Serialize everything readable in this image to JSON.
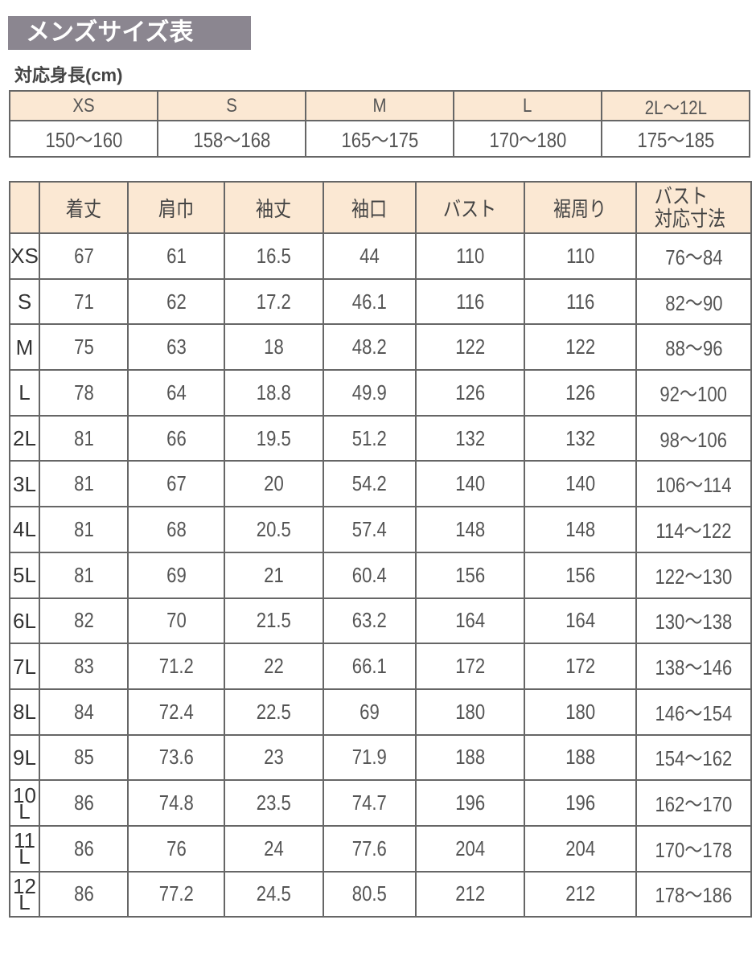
{
  "title": "メンズサイズ表",
  "height_label": "対応身長(cm)",
  "height_table": {
    "sizes": [
      "XS",
      "S",
      "M",
      "L",
      "2L〜12L"
    ],
    "ranges": [
      "150〜160",
      "158〜168",
      "165〜175",
      "170〜180",
      "175〜185"
    ]
  },
  "size_table": {
    "headers": [
      "",
      "着丈",
      "肩巾",
      "袖丈",
      "袖口",
      "バスト",
      "裾周り",
      "バスト\n対応寸法"
    ],
    "rows": [
      [
        "XS",
        "67",
        "61",
        "16.5",
        "44",
        "110",
        "110",
        "76〜84"
      ],
      [
        "S",
        "71",
        "62",
        "17.2",
        "46.1",
        "116",
        "116",
        "82〜90"
      ],
      [
        "M",
        "75",
        "63",
        "18",
        "48.2",
        "122",
        "122",
        "88〜96"
      ],
      [
        "L",
        "78",
        "64",
        "18.8",
        "49.9",
        "126",
        "126",
        "92〜100"
      ],
      [
        "2L",
        "81",
        "66",
        "19.5",
        "51.2",
        "132",
        "132",
        "98〜106"
      ],
      [
        "3L",
        "81",
        "67",
        "20",
        "54.2",
        "140",
        "140",
        "106〜114"
      ],
      [
        "4L",
        "81",
        "68",
        "20.5",
        "57.4",
        "148",
        "148",
        "114〜122"
      ],
      [
        "5L",
        "81",
        "69",
        "21",
        "60.4",
        "156",
        "156",
        "122〜130"
      ],
      [
        "6L",
        "82",
        "70",
        "21.5",
        "63.2",
        "164",
        "164",
        "130〜138"
      ],
      [
        "7L",
        "83",
        "71.2",
        "22",
        "66.1",
        "172",
        "172",
        "138〜146"
      ],
      [
        "8L",
        "84",
        "72.4",
        "22.5",
        "69",
        "180",
        "180",
        "146〜154"
      ],
      [
        "9L",
        "85",
        "73.6",
        "23",
        "71.9",
        "188",
        "188",
        "154〜162"
      ],
      [
        "10L",
        "86",
        "74.8",
        "23.5",
        "74.7",
        "196",
        "196",
        "162〜170"
      ],
      [
        "11L",
        "86",
        "76",
        "24",
        "77.6",
        "204",
        "204",
        "170〜178"
      ],
      [
        "12L",
        "86",
        "77.2",
        "24.5",
        "80.5",
        "212",
        "212",
        "178〜186"
      ]
    ]
  },
  "colors": {
    "title_bg": "#8b8690",
    "header_bg": "#fbe8d3",
    "border": "#666666"
  }
}
